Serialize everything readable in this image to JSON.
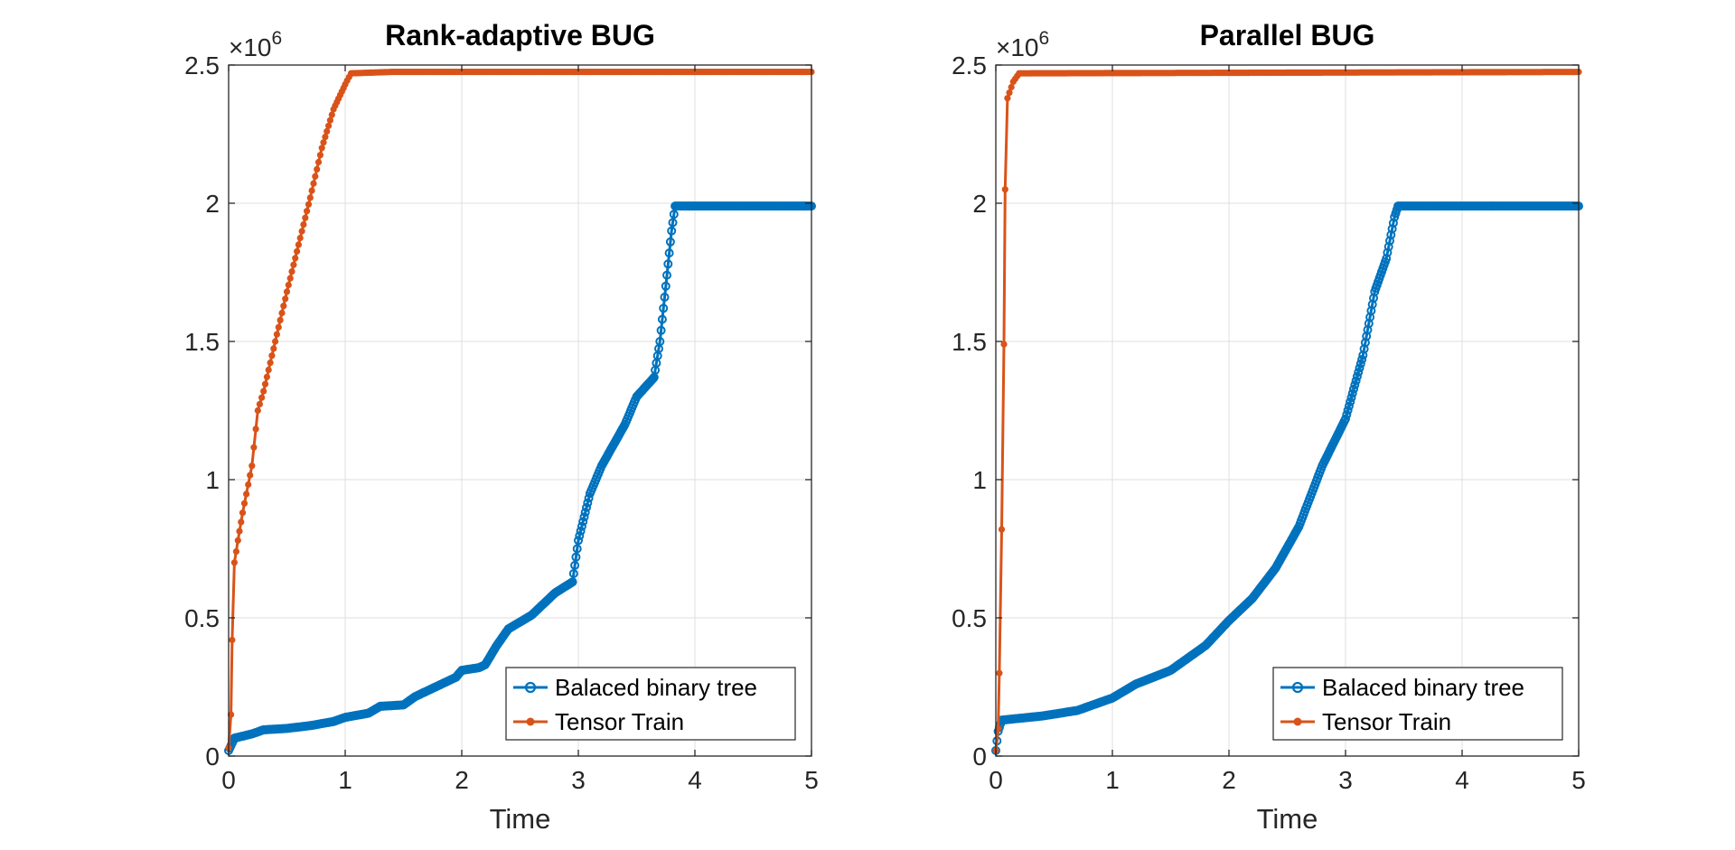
{
  "colors": {
    "series_blue": "#0072BD",
    "series_orange": "#D95319",
    "axis": "#262626",
    "grid": "#DFDFDF",
    "title": "#000000"
  },
  "chart_data": [
    {
      "type": "line",
      "title": "Rank-adaptive BUG",
      "xlabel": "Time",
      "ylabel": "",
      "xlim": [
        0,
        5
      ],
      "ylim": [
        0,
        2500000
      ],
      "y_exponent_label": "×10",
      "y_exponent_power": "6",
      "xticks": [
        "0",
        "1",
        "2",
        "3",
        "4",
        "5"
      ],
      "yticks": [
        "0",
        "0.5",
        "1",
        "1.5",
        "2",
        "2.5"
      ],
      "grid": true,
      "legend_position": "bottom-right",
      "legend": [
        "Balaced binary tree",
        "Tensor Train"
      ],
      "series": [
        {
          "name": "Balaced binary tree",
          "marker": "circle",
          "points": [
            [
              0,
              20000
            ],
            [
              0.05,
              65000
            ],
            [
              0.2,
              80000
            ],
            [
              0.3,
              95000
            ],
            [
              0.5,
              100000
            ],
            [
              0.7,
              110000
            ],
            [
              0.9,
              125000
            ],
            [
              1.0,
              140000
            ],
            [
              1.2,
              155000
            ],
            [
              1.3,
              180000
            ],
            [
              1.5,
              185000
            ],
            [
              1.6,
              215000
            ],
            [
              1.8,
              255000
            ],
            [
              1.95,
              285000
            ],
            [
              2.0,
              310000
            ],
            [
              2.15,
              320000
            ],
            [
              2.2,
              330000
            ],
            [
              2.3,
              400000
            ],
            [
              2.4,
              460000
            ],
            [
              2.6,
              510000
            ],
            [
              2.8,
              590000
            ],
            [
              2.95,
              630000
            ],
            [
              3.0,
              780000
            ],
            [
              3.1,
              950000
            ],
            [
              3.2,
              1050000
            ],
            [
              3.4,
              1200000
            ],
            [
              3.5,
              1300000
            ],
            [
              3.65,
              1370000
            ],
            [
              3.7,
              1500000
            ],
            [
              3.75,
              1700000
            ],
            [
              3.8,
              1900000
            ],
            [
              3.83,
              1990000
            ],
            [
              5.0,
              1990000
            ]
          ]
        },
        {
          "name": "Tensor Train",
          "marker": "dot",
          "points": [
            [
              0,
              30000
            ],
            [
              0.02,
              150000
            ],
            [
              0.03,
              420000
            ],
            [
              0.05,
              700000
            ],
            [
              0.08,
              780000
            ],
            [
              0.12,
              880000
            ],
            [
              0.2,
              1050000
            ],
            [
              0.25,
              1250000
            ],
            [
              0.3,
              1320000
            ],
            [
              0.4,
              1500000
            ],
            [
              0.5,
              1680000
            ],
            [
              0.6,
              1850000
            ],
            [
              0.7,
              2020000
            ],
            [
              0.8,
              2200000
            ],
            [
              0.9,
              2340000
            ],
            [
              1.0,
              2430000
            ],
            [
              1.05,
              2470000
            ],
            [
              1.4,
              2475000
            ],
            [
              5.0,
              2475000
            ]
          ]
        }
      ]
    },
    {
      "type": "line",
      "title": "Parallel BUG",
      "xlabel": "Time",
      "ylabel": "",
      "xlim": [
        0,
        5
      ],
      "ylim": [
        0,
        2500000
      ],
      "y_exponent_label": "×10",
      "y_exponent_power": "6",
      "xticks": [
        "0",
        "1",
        "2",
        "3",
        "4",
        "5"
      ],
      "yticks": [
        "0",
        "0.5",
        "1",
        "1.5",
        "2",
        "2.5"
      ],
      "grid": true,
      "legend_position": "bottom-right",
      "legend": [
        "Balaced binary tree",
        "Tensor Train"
      ],
      "series": [
        {
          "name": "Balaced binary tree",
          "marker": "circle",
          "points": [
            [
              0,
              20000
            ],
            [
              0.02,
              90000
            ],
            [
              0.05,
              130000
            ],
            [
              0.4,
              145000
            ],
            [
              0.7,
              165000
            ],
            [
              1.0,
              210000
            ],
            [
              1.2,
              260000
            ],
            [
              1.5,
              310000
            ],
            [
              1.8,
              400000
            ],
            [
              2.0,
              490000
            ],
            [
              2.2,
              570000
            ],
            [
              2.4,
              680000
            ],
            [
              2.6,
              830000
            ],
            [
              2.8,
              1050000
            ],
            [
              3.0,
              1220000
            ],
            [
              3.15,
              1450000
            ],
            [
              3.25,
              1680000
            ],
            [
              3.35,
              1800000
            ],
            [
              3.42,
              1950000
            ],
            [
              3.45,
              1990000
            ],
            [
              5.0,
              1990000
            ]
          ]
        },
        {
          "name": "Tensor Train",
          "marker": "dot",
          "points": [
            [
              0,
              20000
            ],
            [
              0.02,
              100000
            ],
            [
              0.03,
              300000
            ],
            [
              0.05,
              820000
            ],
            [
              0.07,
              1490000
            ],
            [
              0.08,
              2050000
            ],
            [
              0.1,
              2380000
            ],
            [
              0.15,
              2440000
            ],
            [
              0.2,
              2470000
            ],
            [
              5.0,
              2475000
            ]
          ]
        }
      ]
    }
  ]
}
